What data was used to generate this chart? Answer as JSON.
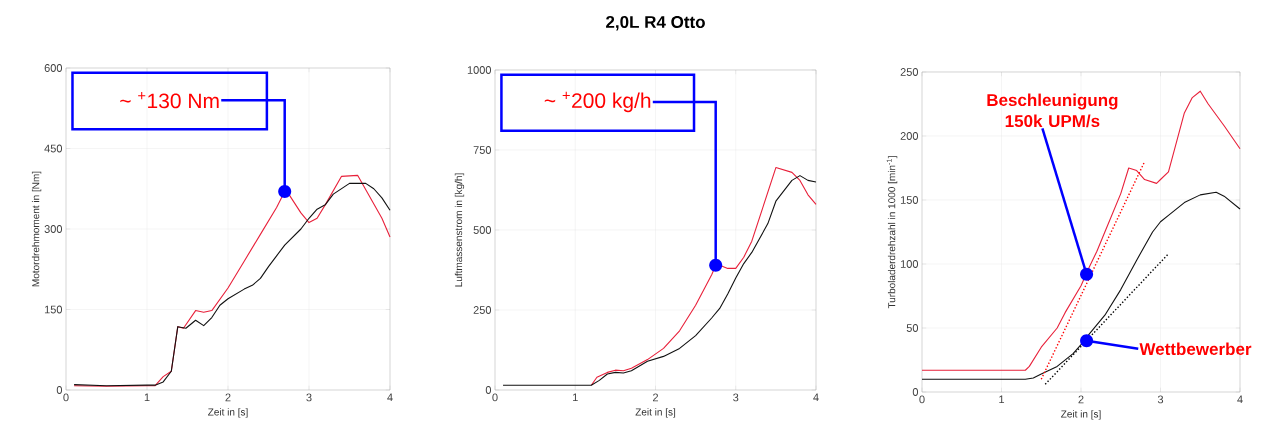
{
  "chart_data": [
    {
      "type": "line",
      "xlabel": "Zeit in [s]",
      "ylabel": "Motordrehmoment in [Nm]",
      "xlim": [
        0,
        4
      ],
      "ylim": [
        0,
        600
      ],
      "xticks": [
        0,
        1,
        2,
        3,
        4
      ],
      "yticks": [
        0,
        150,
        300,
        450,
        600
      ],
      "grid": true,
      "annotations": [
        {
          "text": "~ $^{+}$130 Nm",
          "x": 2.7,
          "y": 370
        }
      ],
      "series": [
        {
          "color": "#e8203a",
          "x": [
            0.1,
            0.5,
            1.0,
            1.1,
            1.2,
            1.3,
            1.38,
            1.45,
            1.6,
            1.7,
            1.8,
            2.0,
            2.2,
            2.4,
            2.6,
            2.7,
            2.75,
            2.9,
            3.0,
            3.1,
            3.2,
            3.4,
            3.6,
            3.9,
            4.0
          ],
          "values": [
            8,
            7,
            8,
            8,
            25,
            35,
            118,
            115,
            148,
            145,
            148,
            190,
            240,
            290,
            340,
            370,
            365,
            330,
            312,
            320,
            345,
            398,
            400,
            320,
            285
          ]
        },
        {
          "color": "#111111",
          "x": [
            0.1,
            0.5,
            1.0,
            1.1,
            1.2,
            1.3,
            1.38,
            1.48,
            1.6,
            1.7,
            1.8,
            1.9,
            2.0,
            2.2,
            2.3,
            2.4,
            2.5,
            2.6,
            2.7,
            2.9,
            3.0,
            3.1,
            3.2,
            3.3,
            3.5,
            3.7,
            3.8,
            3.9,
            4.0
          ],
          "values": [
            10,
            8,
            9,
            9,
            15,
            35,
            118,
            115,
            130,
            120,
            135,
            158,
            170,
            188,
            195,
            208,
            230,
            250,
            270,
            300,
            320,
            337,
            345,
            365,
            385,
            385,
            375,
            358,
            335
          ]
        }
      ]
    },
    {
      "type": "line",
      "title": "2,0L R4 Otto",
      "xlabel": "Zeit in [s]",
      "ylabel": "Luftmassenstrom in [kg/h]",
      "xlim": [
        0,
        4
      ],
      "ylim": [
        0,
        1000
      ],
      "xticks": [
        0,
        1,
        2,
        3,
        4
      ],
      "yticks": [
        0,
        250,
        500,
        750,
        1000
      ],
      "grid": true,
      "annotations": [
        {
          "text": "~ $^{+}$200 kg/h",
          "x": 2.75,
          "y": 390
        }
      ],
      "series": [
        {
          "color": "#e8203a",
          "x": [
            1.2,
            1.27,
            1.4,
            1.5,
            1.6,
            1.7,
            1.9,
            2.1,
            2.3,
            2.5,
            2.7,
            2.75,
            2.8,
            2.9,
            3.0,
            3.1,
            3.2,
            3.5,
            3.7,
            3.8,
            3.9,
            4.0
          ],
          "values": [
            15,
            40,
            55,
            62,
            60,
            68,
            95,
            130,
            185,
            265,
            360,
            390,
            390,
            380,
            380,
            415,
            465,
            695,
            680,
            655,
            610,
            580
          ]
        },
        {
          "color": "#111111",
          "x": [
            0.1,
            1.0,
            1.2,
            1.3,
            1.4,
            1.5,
            1.6,
            1.7,
            1.9,
            2.1,
            2.3,
            2.5,
            2.7,
            2.8,
            2.9,
            3.0,
            3.1,
            3.2,
            3.4,
            3.5,
            3.7,
            3.8,
            3.9,
            4.0
          ],
          "values": [
            15,
            15,
            15,
            30,
            50,
            55,
            53,
            60,
            90,
            105,
            130,
            170,
            225,
            255,
            300,
            350,
            395,
            430,
            520,
            590,
            655,
            670,
            655,
            650
          ]
        }
      ]
    },
    {
      "type": "line",
      "xlabel": "Zeit in [s]",
      "ylabel": "Turboladerdrehzahl in 1000 [min$^{-1}$]",
      "xlim": [
        0,
        4
      ],
      "ylim": [
        0,
        250
      ],
      "xticks": [
        0,
        1,
        2,
        3,
        4
      ],
      "yticks": [
        0,
        50,
        100,
        150,
        200,
        250
      ],
      "grid": true,
      "annotations": [
        {
          "text": "Beschleunigung 150k UPM/s",
          "x": 2.07,
          "y": 92
        },
        {
          "text": "Wettbewerber",
          "x": 2.07,
          "y": 40
        }
      ],
      "series": [
        {
          "color": "#e8203a",
          "x": [
            0,
            1.3,
            1.35,
            1.5,
            1.7,
            1.8,
            2.0,
            2.1,
            2.2,
            2.3,
            2.5,
            2.6,
            2.7,
            2.8,
            2.95,
            3.0,
            3.1,
            3.2,
            3.3,
            3.4,
            3.5,
            3.6,
            3.8,
            4.0
          ],
          "values": [
            17,
            17,
            20,
            35,
            50,
            62,
            83,
            97,
            110,
            125,
            155,
            175,
            173,
            166,
            163,
            166,
            172,
            195,
            218,
            230,
            235,
            225,
            208,
            190
          ]
        },
        {
          "color": "#111111",
          "x": [
            0,
            1.3,
            1.4,
            1.5,
            1.7,
            1.9,
            2.0,
            2.1,
            2.3,
            2.5,
            2.7,
            2.9,
            3.0,
            3.1,
            3.3,
            3.5,
            3.7,
            3.8,
            4.0
          ],
          "values": [
            10,
            10,
            11,
            14,
            20,
            30,
            37,
            45,
            60,
            80,
            103,
            125,
            133,
            138,
            148,
            154,
            156,
            153,
            143
          ]
        },
        {
          "color": "#ff0000",
          "line_style": "dotted",
          "x": [
            1.5,
            2.8
          ],
          "values": [
            10,
            180
          ]
        },
        {
          "color": "#000000",
          "line_style": "dotted",
          "x": [
            1.55,
            3.1
          ],
          "values": [
            6,
            108
          ]
        }
      ]
    }
  ]
}
